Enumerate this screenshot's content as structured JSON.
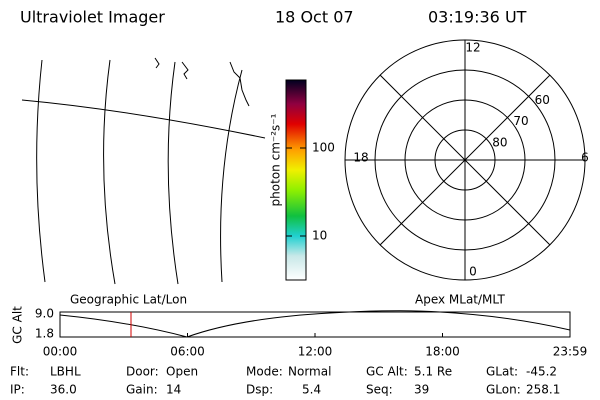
{
  "header": {
    "title": "Ultraviolet Imager",
    "date": "18 Oct 07",
    "time": "03:19:36 UT"
  },
  "colorbar": {
    "label": "photon cm⁻²s⁻¹",
    "ticks": [
      10,
      100
    ]
  },
  "map": {
    "label": "Geographic Lat/Lon"
  },
  "polar": {
    "label": "Apex MLat/MLT",
    "mlt_labels": [
      12,
      6,
      0,
      18
    ],
    "lat_labels": [
      60,
      70,
      80
    ]
  },
  "orbit": {
    "ylabel": "GC Alt",
    "yticks": [
      {
        "value": 9,
        "label": "9.0"
      },
      {
        "value": 1.8,
        "label": "1.8"
      }
    ],
    "xticks": [
      "00:00",
      "06:00",
      "12:00",
      "18:00",
      "23:59"
    ]
  },
  "info": [
    [
      [
        "Flt:",
        "LBHL"
      ],
      [
        "Door:",
        "Open"
      ],
      [
        "Mode:",
        "Normal"
      ],
      [
        "GC Alt:",
        "5.1 Re"
      ],
      [
        "GLat:",
        "-45.2"
      ]
    ],
    [
      [
        "IP:",
        "36.0"
      ],
      [
        "Gain:",
        "14"
      ],
      [
        "Dsp:",
        "5.4"
      ],
      [
        "Seq:",
        "39"
      ],
      [
        "GLon:",
        "258.1"
      ]
    ]
  ]
}
